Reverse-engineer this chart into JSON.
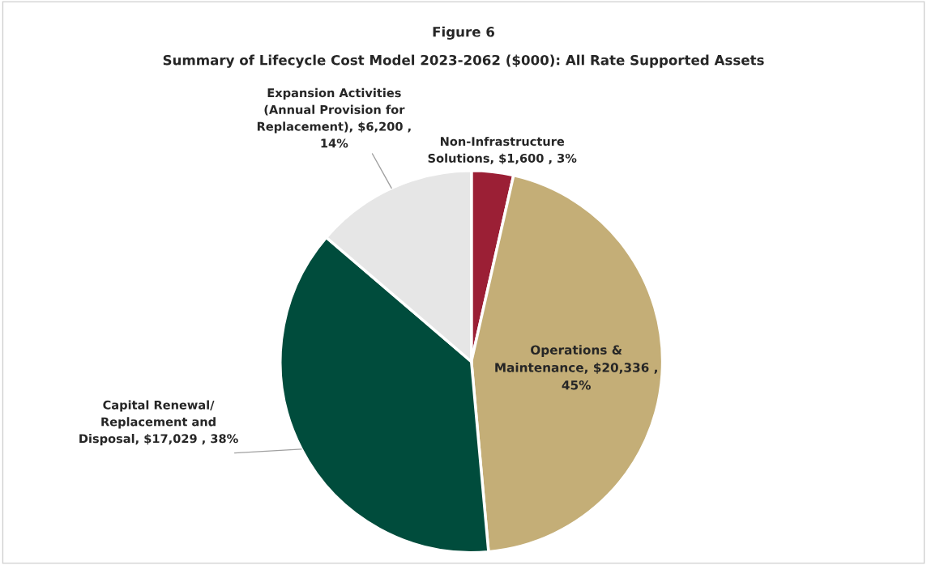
{
  "chart_data": {
    "type": "pie",
    "title": "Figure 6",
    "subtitle": "Summary of Lifecycle Cost Model 2023-2062 ($000): All Rate Supported Assets",
    "categories": [
      "Non-Infrastructure Solutions",
      "Operations & Maintenance",
      "Capital Renewal/ Replacement and Disposal",
      "Expansion Activities (Annual Provision for Replacement)"
    ],
    "values": [
      1600,
      20336,
      17029,
      6200
    ],
    "value_labels": [
      "$1,600 , 3%",
      "$20,336 , 45%",
      "$17,029 , 38%",
      "$6,200 , 14%"
    ],
    "colors": [
      "#9b1f35",
      "#c4ae77",
      "#004c3c",
      "#e6e6e6"
    ],
    "legend": false
  }
}
